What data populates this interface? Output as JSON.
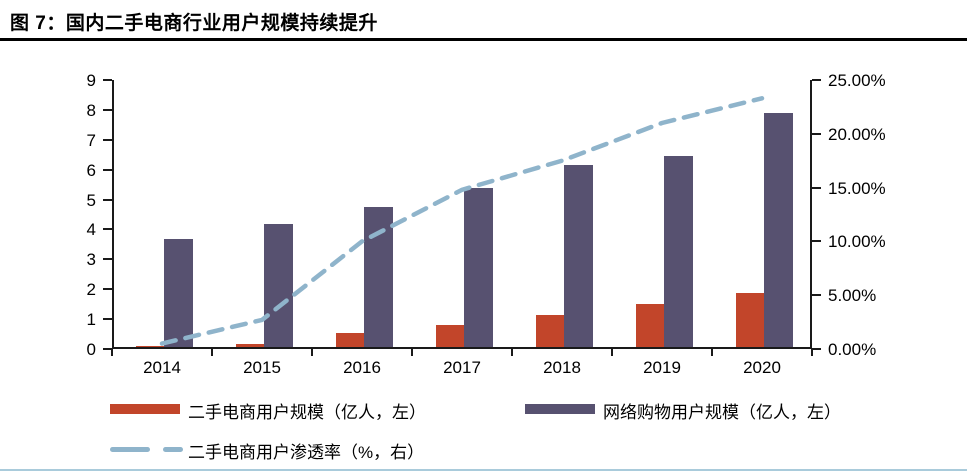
{
  "title": "图 7：国内二手电商行业用户规模持续提升",
  "chart_data": {
    "type": "bar",
    "subtype": "grouped-bars-with-dashed-line-overlay",
    "categories": [
      "2014",
      "2015",
      "2016",
      "2017",
      "2018",
      "2019",
      "2020"
    ],
    "series": [
      {
        "name": "二手电商用户规模（亿人，左）",
        "type": "bar",
        "axis": "left",
        "color": "#c2452a",
        "values": [
          0.05,
          0.11,
          0.46,
          0.73,
          1.07,
          1.44,
          1.82
        ]
      },
      {
        "name": "网络购物用户规模（亿人，左）",
        "type": "bar",
        "axis": "left",
        "color": "#575170",
        "values": [
          3.61,
          4.13,
          4.67,
          5.33,
          6.1,
          6.39,
          7.82
        ]
      },
      {
        "name": "二手电商用户渗透率（%，右）",
        "type": "line",
        "line_style": "dashed",
        "axis": "right",
        "color": "#8fb4cb",
        "values": [
          0.5,
          2.7,
          10.0,
          14.8,
          17.5,
          21.0,
          23.3
        ]
      }
    ],
    "left_axis": {
      "min": 0,
      "max": 9,
      "step": 1,
      "tick_labels": [
        "0",
        "1",
        "2",
        "3",
        "4",
        "5",
        "6",
        "7",
        "8",
        "9"
      ]
    },
    "right_axis": {
      "min": 0,
      "max": 25,
      "step": 5,
      "tick_labels": [
        "0.00%",
        "5.00%",
        "10.00%",
        "15.00%",
        "20.00%",
        "25.00%"
      ]
    },
    "grid": false,
    "legend_position": "bottom"
  },
  "colors": {
    "bar1": "#c2452a",
    "bar2": "#575170",
    "line": "#8fb4cb",
    "axis": "#1a1a1a",
    "title_rule": "#000000",
    "bottom_rule": "#a9cbdb"
  }
}
